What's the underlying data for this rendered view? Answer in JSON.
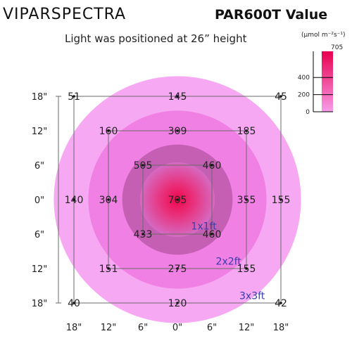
{
  "brand": "VIPARSPECTRA",
  "title": "PAR600T Value",
  "subtitle": "Light was positioned at 26” height",
  "legend": {
    "unit": "(μmol m⁻²s⁻¹)",
    "max_label": "705",
    "ticks": [
      "400",
      "200",
      "0"
    ],
    "tick_values": [
      400,
      200,
      0
    ],
    "max": 705,
    "colors": {
      "high": "#e8004f",
      "low": "#f89ce8"
    }
  },
  "rings": {
    "colors": [
      "#f7a8f3",
      "#f080e3",
      "#c45fb4"
    ],
    "center_color": "#f0064d",
    "edge_color": "#d56ac2"
  },
  "chart_data": {
    "type": "heatmap",
    "title": "PAR600T Value",
    "subtitle": "Light was positioned at 26” height",
    "unit": "μmol m⁻²s⁻¹",
    "x_ticks": [
      "18\"",
      "12\"",
      "6\"",
      "0\"",
      "6\"",
      "12\"",
      "18\""
    ],
    "y_ticks": [
      "18\"",
      "12\"",
      "6\"",
      "0\"",
      "6\"",
      "12\"",
      "18\""
    ],
    "points": [
      {
        "x": -18,
        "y": 18,
        "value": "51"
      },
      {
        "x": 0,
        "y": 18,
        "value": "145"
      },
      {
        "x": 18,
        "y": 18,
        "value": "45"
      },
      {
        "x": -12,
        "y": 12,
        "value": "160"
      },
      {
        "x": 0,
        "y": 12,
        "value": "309"
      },
      {
        "x": 12,
        "y": 12,
        "value": "185"
      },
      {
        "x": -6,
        "y": 6,
        "value": "505"
      },
      {
        "x": 6,
        "y": 6,
        "value": "460"
      },
      {
        "x": -18,
        "y": 0,
        "value": "140"
      },
      {
        "x": -12,
        "y": 0,
        "value": "304"
      },
      {
        "x": 0,
        "y": 0,
        "value": "705"
      },
      {
        "x": 12,
        "y": 0,
        "value": "355"
      },
      {
        "x": 18,
        "y": 0,
        "value": "155"
      },
      {
        "x": -6,
        "y": -6,
        "value": "433"
      },
      {
        "x": 6,
        "y": -6,
        "value": "460"
      },
      {
        "x": -12,
        "y": -12,
        "value": "151"
      },
      {
        "x": 0,
        "y": -12,
        "value": "275"
      },
      {
        "x": 12,
        "y": -12,
        "value": "155"
      },
      {
        "x": -18,
        "y": -18,
        "value": "40"
      },
      {
        "x": 0,
        "y": -18,
        "value": "120"
      },
      {
        "x": 18,
        "y": -18,
        "value": "42"
      }
    ],
    "areas": [
      {
        "label": "1x1ft",
        "half_width": 6
      },
      {
        "label": "2x2ft",
        "half_width": 12
      },
      {
        "label": "3x3ft",
        "half_width": 18
      }
    ],
    "legend_range": [
      0,
      705
    ]
  }
}
